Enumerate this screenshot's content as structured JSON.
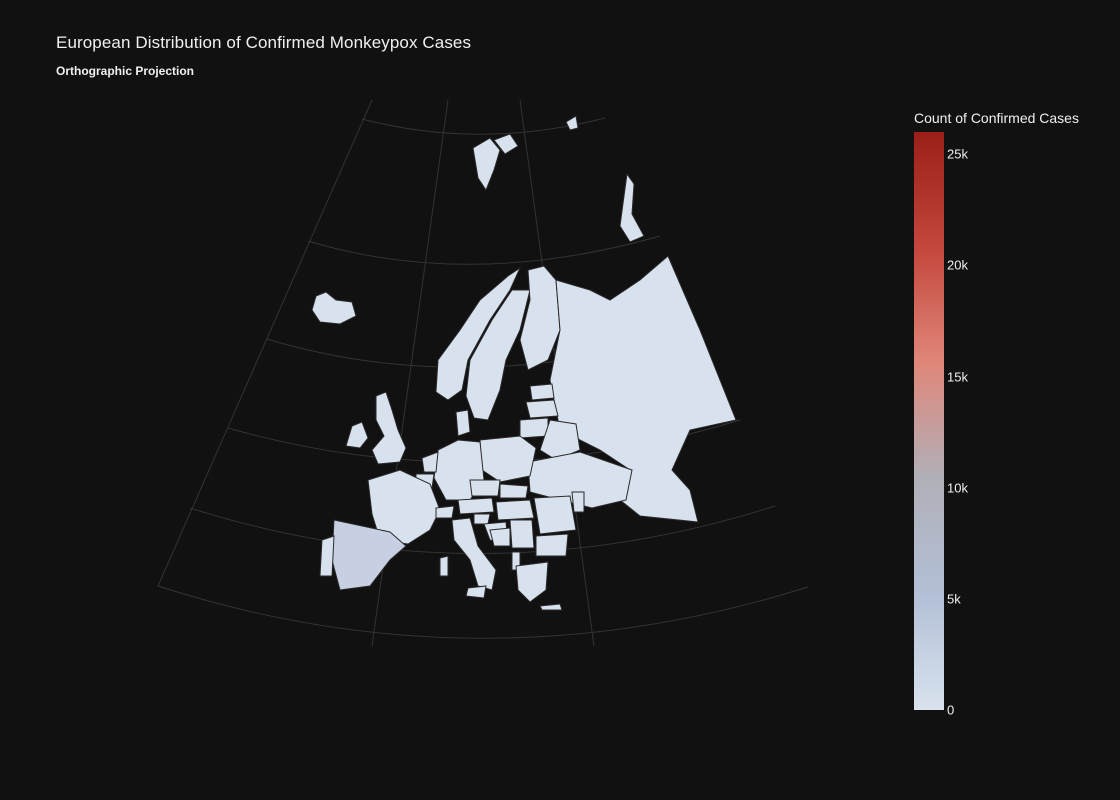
{
  "header": {
    "title": "European Distribution of Confirmed Monkeypox Cases",
    "subtitle": "Orthographic Projection"
  },
  "colorbar": {
    "title": "Count of Confirmed Cases",
    "ticks": [
      {
        "label": "0",
        "value": 0
      },
      {
        "label": "5k",
        "value": 5000
      },
      {
        "label": "10k",
        "value": 10000
      },
      {
        "label": "15k",
        "value": 15000
      },
      {
        "label": "20k",
        "value": 20000
      },
      {
        "label": "25k",
        "value": 25000
      }
    ],
    "range": [
      0,
      26000
    ],
    "colors": [
      "#d8e2ee",
      "#b3bfd6",
      "#b0b0b8",
      "#e0877a",
      "#c4463c",
      "#9a1f18"
    ]
  },
  "map": {
    "projection": "orthographic",
    "background": "#111111",
    "land_default": "#d8e2ee",
    "border_color": "#2a2a2a",
    "graticule_color": "#333333"
  }
}
